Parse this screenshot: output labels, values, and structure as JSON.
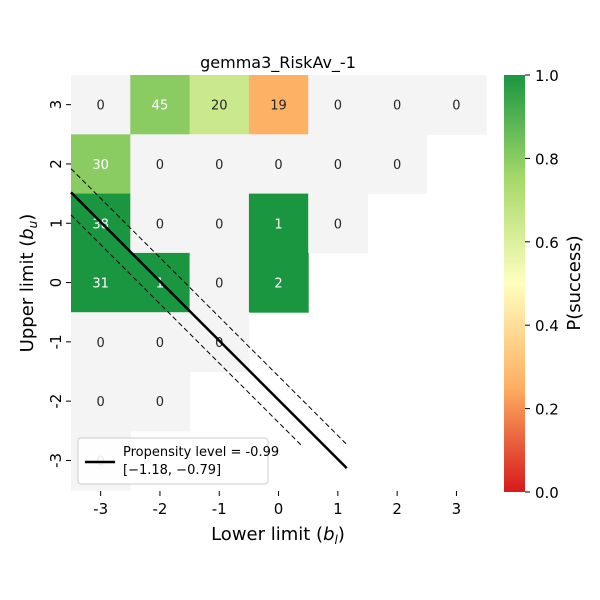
{
  "chart_data": {
    "type": "heatmap",
    "title": "gemma3_RiskAv_-1",
    "xlabel_text": "Lower limit (",
    "xlabel_var": "b",
    "xlabel_sub": "l",
    "xlabel_close": ")",
    "ylabel_text": "Upper limit (",
    "ylabel_var": "b",
    "ylabel_sub": "u",
    "ylabel_close": ")",
    "x_ticks": [
      "-3",
      "-2",
      "-1",
      "0",
      "1",
      "2",
      "3"
    ],
    "y_ticks": [
      "3",
      "2",
      "1",
      "0",
      "-1",
      "-2",
      "-3"
    ],
    "x_values": [
      -3,
      -2,
      -1,
      0,
      1,
      2,
      3
    ],
    "y_values": [
      3,
      2,
      1,
      0,
      -1,
      -2,
      -3
    ],
    "cells": [
      {
        "x": -3,
        "y": 3,
        "count": "0",
        "p": null
      },
      {
        "x": -2,
        "y": 3,
        "count": "45",
        "p": 0.8
      },
      {
        "x": -1,
        "y": 3,
        "count": "20",
        "p": 0.65
      },
      {
        "x": 0,
        "y": 3,
        "count": "19",
        "p": 0.26
      },
      {
        "x": 1,
        "y": 3,
        "count": "0",
        "p": null
      },
      {
        "x": 2,
        "y": 3,
        "count": "0",
        "p": null
      },
      {
        "x": 3,
        "y": 3,
        "count": "0",
        "p": null
      },
      {
        "x": -3,
        "y": 2,
        "count": "30",
        "p": 0.8
      },
      {
        "x": -2,
        "y": 2,
        "count": "0",
        "p": null
      },
      {
        "x": -1,
        "y": 2,
        "count": "0",
        "p": null
      },
      {
        "x": 0,
        "y": 2,
        "count": "0",
        "p": null
      },
      {
        "x": 1,
        "y": 2,
        "count": "0",
        "p": null
      },
      {
        "x": 2,
        "y": 2,
        "count": "0",
        "p": null
      },
      {
        "x": -3,
        "y": 1,
        "count": "38",
        "p": 1.0
      },
      {
        "x": -2,
        "y": 1,
        "count": "0",
        "p": null
      },
      {
        "x": -1,
        "y": 1,
        "count": "0",
        "p": null
      },
      {
        "x": 0,
        "y": 1,
        "count": "1",
        "p": 1.0
      },
      {
        "x": 1,
        "y": 1,
        "count": "0",
        "p": null
      },
      {
        "x": -3,
        "y": 0,
        "count": "31",
        "p": 1.0
      },
      {
        "x": -2,
        "y": 0,
        "count": "1",
        "p": 1.0
      },
      {
        "x": -1,
        "y": 0,
        "count": "0",
        "p": null
      },
      {
        "x": 0,
        "y": 0,
        "count": "2",
        "p": 1.0
      },
      {
        "x": -3,
        "y": -1,
        "count": "0",
        "p": null
      },
      {
        "x": -2,
        "y": -1,
        "count": "0",
        "p": null
      },
      {
        "x": -1,
        "y": -1,
        "count": "0",
        "p": null
      },
      {
        "x": -3,
        "y": -2,
        "count": "0",
        "p": null
      },
      {
        "x": -2,
        "y": -2,
        "count": "0",
        "p": null
      },
      {
        "x": -3,
        "y": -3,
        "count": "0",
        "p": null
      }
    ],
    "empty_cell_color": "#f4f4f4",
    "propensity_line": {
      "label": "Propensity level = -0.99",
      "ci_label": "[−1.18, −0.79]",
      "level": -0.99,
      "ci": [
        -1.18,
        -0.79
      ],
      "color": "#000000"
    },
    "colorbar": {
      "label": "P(success)",
      "ticks": [
        "0.0",
        "0.2",
        "0.4",
        "0.6",
        "0.8",
        "1.0"
      ],
      "tick_values": [
        0.0,
        0.2,
        0.4,
        0.6,
        0.8,
        1.0
      ],
      "colors": [
        "#d7191c",
        "#fdae61",
        "#ffffbf",
        "#a6d96a",
        "#1a9641"
      ]
    },
    "legend_position": "lower-left",
    "grid": false
  }
}
